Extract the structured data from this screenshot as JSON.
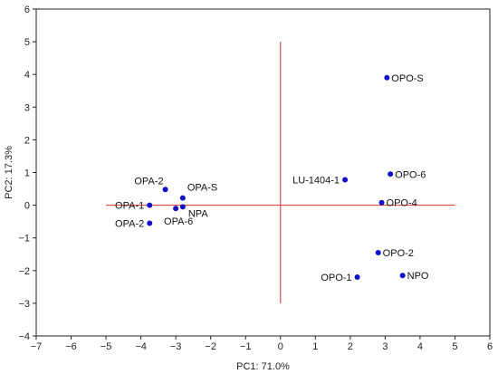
{
  "chart_data": {
    "type": "scatter",
    "xlabel": "PC1: 71.0%",
    "ylabel": "PC2: 17.3%",
    "xlim": [
      -7,
      6
    ],
    "ylim": [
      -4,
      6
    ],
    "xticks": [
      -7,
      -6,
      -5,
      -4,
      -3,
      -2,
      -1,
      0,
      1,
      2,
      3,
      4,
      5,
      6
    ],
    "yticks": [
      -4,
      -3,
      -2,
      -1,
      0,
      1,
      2,
      3,
      4,
      5,
      6
    ],
    "grid": false,
    "marker_color": "#1010c8",
    "reference_line_color": "#d83030",
    "reference_lines": {
      "horizontal": {
        "y": 0,
        "x_range": [
          -5,
          5
        ]
      },
      "vertical": {
        "x": 0,
        "y_range": [
          -3,
          5
        ]
      }
    },
    "points": [
      {
        "label": "OPO-S",
        "x": 3.05,
        "y": 3.9,
        "label_pos": "right"
      },
      {
        "label": "OPO-6",
        "x": 3.15,
        "y": 0.95,
        "label_pos": "right"
      },
      {
        "label": "LU-1404-1",
        "x": 1.85,
        "y": 0.78,
        "label_pos": "left"
      },
      {
        "label": "OPO-4",
        "x": 2.9,
        "y": 0.08,
        "label_pos": "right"
      },
      {
        "label": "OPO-2",
        "x": 2.8,
        "y": -1.45,
        "label_pos": "right"
      },
      {
        "label": "OPO-1",
        "x": 2.2,
        "y": -2.2,
        "label_pos": "left"
      },
      {
        "label": "NPO",
        "x": 3.5,
        "y": -2.15,
        "label_pos": "right"
      },
      {
        "label": "OPA-2",
        "x": -3.3,
        "y": 0.48,
        "label_pos": "above-left"
      },
      {
        "label": "OPA-S",
        "x": -2.8,
        "y": 0.22,
        "label_pos": "above-right"
      },
      {
        "label": "OPA-1",
        "x": -3.75,
        "y": 0.0,
        "label_pos": "left"
      },
      {
        "label": "NPA",
        "x": -2.8,
        "y": -0.05,
        "label_pos": "below-right"
      },
      {
        "label": "OPA-6",
        "x": -3.0,
        "y": -0.1,
        "label_pos": "below"
      },
      {
        "label": "OPA-2",
        "x": -3.75,
        "y": -0.55,
        "label_pos": "left"
      }
    ]
  }
}
